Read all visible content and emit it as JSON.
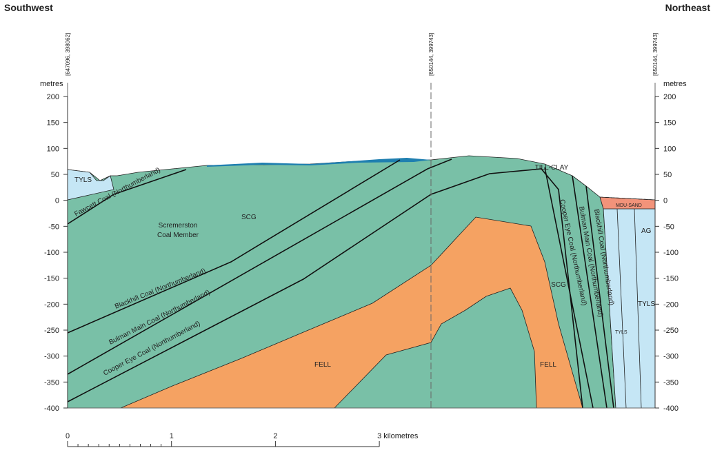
{
  "header": {
    "left": "Southwest",
    "right": "Northeast"
  },
  "coordinates": [
    "[647096, 398062]",
    "[650144, 399743]",
    "[650144, 399743]"
  ],
  "axis": {
    "unit": "metres",
    "ylim": [
      -400,
      200
    ],
    "ticks": [
      200,
      150,
      100,
      50,
      0,
      -50,
      -100,
      -150,
      -200,
      -250,
      -300,
      -350,
      -400
    ]
  },
  "labels": [
    "TYLS",
    "Fawcett Coal (Northumberland)",
    "Scremerston",
    "Coal Member",
    "SCG",
    "Blackhill Coal (Northumberland)",
    "Bulman Main Coal (Northumberland)",
    "Cooper Eye Coal (Northumberland)",
    "FELL",
    "FELL",
    "SCG",
    "TILL-CLAY",
    "MDU-SAND",
    "AG",
    "TYLS",
    "TYLS"
  ],
  "scale_bar": {
    "labels": [
      "0",
      "1",
      "2",
      "3 kilometres"
    ]
  }
}
